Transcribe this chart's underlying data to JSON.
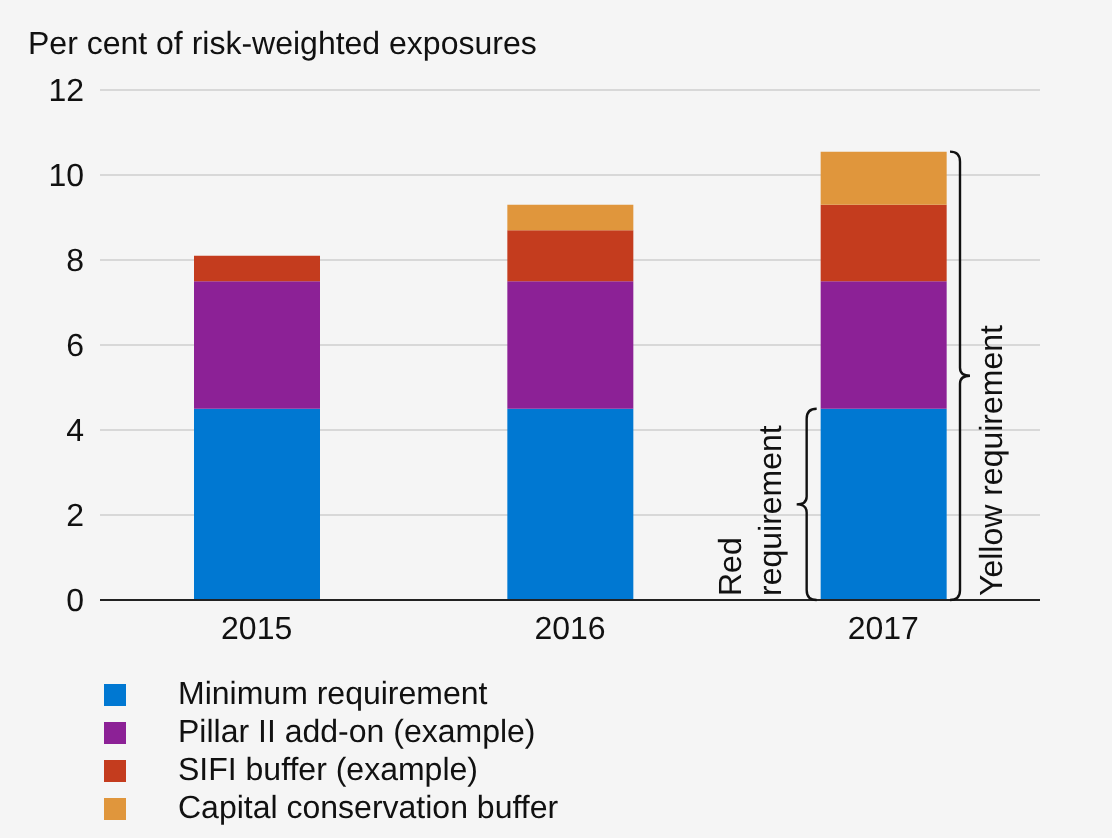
{
  "chart_data": {
    "type": "bar",
    "ylabel": "Per cent of risk-weighted exposures",
    "categories": [
      "2015",
      "2016",
      "2017"
    ],
    "stacked": true,
    "series": [
      {
        "name": "Minimum requirement",
        "color": "#0078d2",
        "values": [
          4.5,
          4.5,
          4.5
        ]
      },
      {
        "name": "Pillar II add-on (example)",
        "color": "#8c2196",
        "values": [
          3.0,
          3.0,
          3.0
        ]
      },
      {
        "name": "SIFI buffer (example)",
        "color": "#c43c1e",
        "values": [
          0.6,
          1.2,
          1.8
        ]
      },
      {
        "name": "Capital conservation buffer",
        "color": "#e0963c",
        "values": [
          null,
          0.6,
          1.25
        ]
      }
    ],
    "ylim": [
      0,
      12
    ],
    "yticks": [
      0,
      2,
      4,
      6,
      8,
      10,
      12
    ],
    "grid": "y",
    "legend": "bottom",
    "annotations": [
      "Red requirement",
      "Yellow requirement"
    ]
  }
}
